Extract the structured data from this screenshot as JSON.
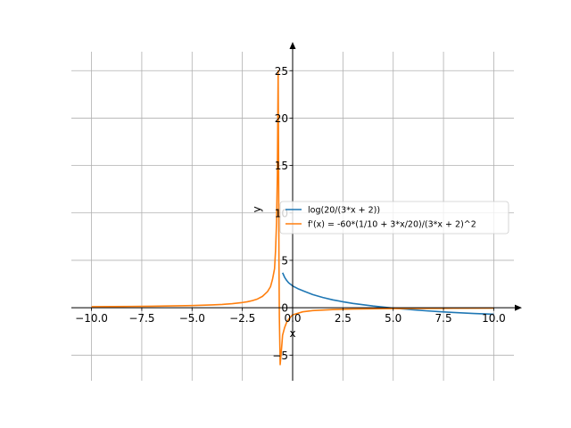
{
  "chart_data": {
    "type": "line",
    "xlabel": "x",
    "ylabel": "y",
    "xlim": [
      -11.0,
      11.0
    ],
    "ylim": [
      -7.7,
      27.0
    ],
    "grid": true,
    "legend_position": "center-right",
    "x_ticks": [
      {
        "value": -10.0,
        "label": "−10.0"
      },
      {
        "value": -7.5,
        "label": "−7.5"
      },
      {
        "value": -5.0,
        "label": "−5.0"
      },
      {
        "value": -2.5,
        "label": "−2.5"
      },
      {
        "value": 0.0,
        "label": "0.0"
      },
      {
        "value": 2.5,
        "label": "2.5"
      },
      {
        "value": 5.0,
        "label": "5.0"
      },
      {
        "value": 7.5,
        "label": "7.5"
      },
      {
        "value": 10.0,
        "label": "10.0"
      }
    ],
    "y_ticks": [
      {
        "value": -5,
        "label": "−5"
      },
      {
        "value": 0,
        "label": "0"
      },
      {
        "value": 5,
        "label": "5"
      },
      {
        "value": 10,
        "label": "10"
      },
      {
        "value": 15,
        "label": "15"
      },
      {
        "value": 20,
        "label": "20"
      },
      {
        "value": 25,
        "label": "25"
      }
    ],
    "series": [
      {
        "name": "log(20/(3*x + 2))",
        "color": "#1f77b4",
        "x": [
          -0.5,
          -0.4,
          -0.3,
          -0.2,
          0.0,
          0.3,
          0.6,
          1.0,
          1.5,
          2.0,
          2.5,
          3.0,
          4.0,
          5.0,
          6.0,
          6.67,
          7.5,
          8.0,
          9.0,
          10.0
        ],
        "y": [
          3.69,
          3.22,
          2.89,
          2.63,
          2.3,
          1.97,
          1.72,
          1.39,
          1.08,
          0.83,
          0.63,
          0.45,
          0.18,
          -0.04,
          -0.22,
          -0.33,
          -0.44,
          -0.5,
          -0.61,
          -0.69
        ]
      },
      {
        "name": "f'(x) = -60*(1/10 + 3*x/20)/(3*x + 2)^2",
        "color": "#ff7f0e",
        "x": [
          -10.0,
          -9.0,
          -8.0,
          -7.0,
          -6.0,
          -5.0,
          -4.5,
          -4.0,
          -3.5,
          -3.0,
          -2.5,
          -2.25,
          -2.0,
          -1.75,
          -1.5,
          -1.25,
          -1.1,
          -1.0,
          -0.9,
          -0.85,
          -0.8,
          -0.76,
          -0.72,
          -0.7,
          -0.68,
          -0.66,
          -0.62,
          -0.58,
          -0.54,
          -0.5,
          -0.45,
          -0.4,
          -0.3,
          -0.2,
          0.0,
          0.5,
          1.0,
          2.0,
          3.0,
          4.0,
          5.0,
          7.5,
          10.0
        ],
        "y": [
          0.11,
          0.12,
          0.14,
          0.16,
          0.19,
          0.23,
          0.26,
          0.3,
          0.35,
          0.43,
          0.55,
          0.63,
          0.75,
          0.92,
          1.2,
          1.7,
          2.22,
          3.0,
          4.1,
          6.0,
          9.0,
          14.0,
          25.0,
          16.0,
          5.0,
          -1.0,
          -6.0,
          -5.0,
          -4.0,
          -2.9,
          -2.5,
          -2.1,
          -1.55,
          -1.2,
          -0.75,
          -0.43,
          -0.3,
          -0.19,
          -0.14,
          -0.11,
          -0.09,
          -0.063,
          -0.048
        ]
      }
    ]
  }
}
